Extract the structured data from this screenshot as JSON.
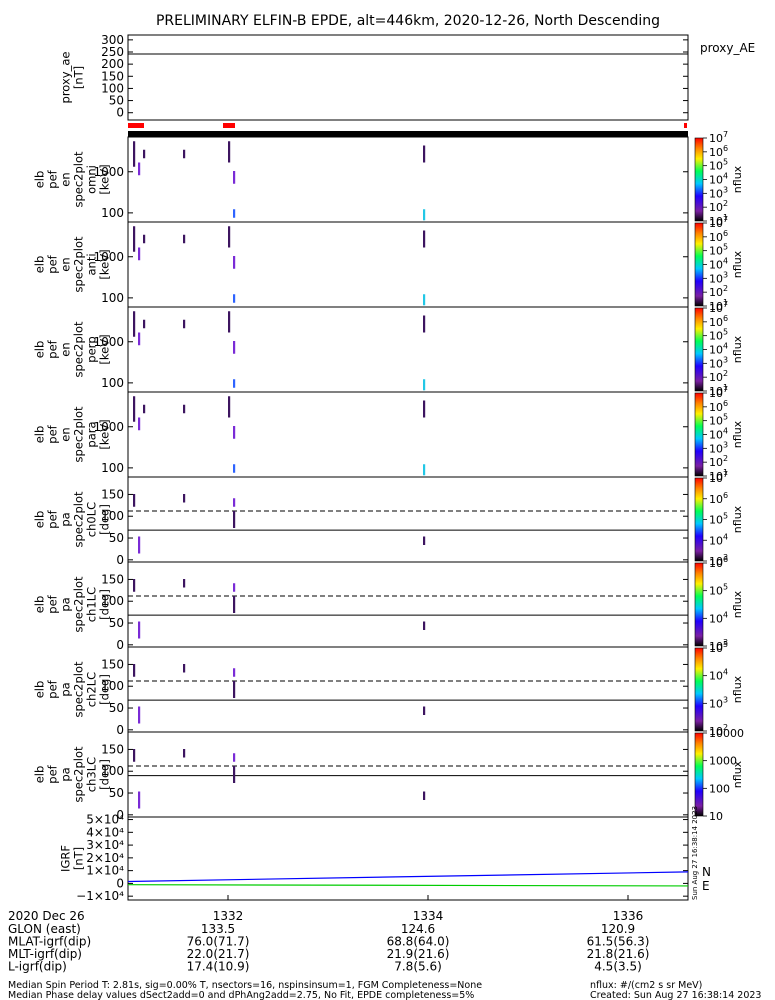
{
  "title": "PRELIMINARY ELFIN-B EPDE, alt=446km, 2020-12-26, North Descending",
  "colors": {
    "axis": "#000000",
    "flag_red": "#ff0000",
    "igrf_n": "#0000ff",
    "igrf_e": "#00cc00",
    "pixel_purple": "#3d1560",
    "pixel_violet": "#7a2bd6",
    "pixel_blue": "#2e63ff",
    "pixel_cyan": "#22c7e6"
  },
  "chart_data": [
    {
      "type": "line",
      "id": "proxy_ae",
      "ylabel_lines": [
        "proxy_ae",
        "[nT]"
      ],
      "yticks": [
        "300",
        "250",
        "200",
        "150",
        "100",
        "50",
        "0"
      ],
      "ylim": [
        -30,
        320
      ],
      "legend": "proxy_AE",
      "series": [
        {
          "x": [
            1331.0,
            1336.6
          ],
          "y": [
            242,
            242
          ]
        }
      ]
    },
    {
      "type": "heatmap",
      "id": "spec_omni",
      "ylabel_lines": [
        "elb",
        "pef",
        "en",
        "spec2plot",
        "omni",
        "[keV]"
      ],
      "yscale": "log",
      "ylim": [
        60,
        7000
      ],
      "yticks": [
        "1000",
        "100"
      ],
      "colorbar": {
        "scale": "log",
        "range": [
          10,
          10000000
        ],
        "label": "nflux"
      }
    },
    {
      "type": "heatmap",
      "id": "spec_anti",
      "ylabel_lines": [
        "elb",
        "pef",
        "en",
        "spec2plot",
        "anti",
        "[keV]"
      ],
      "yscale": "log",
      "ylim": [
        60,
        7000
      ],
      "yticks": [
        "1000",
        "100"
      ],
      "colorbar": {
        "scale": "log",
        "range": [
          10,
          10000000
        ],
        "label": "nflux"
      }
    },
    {
      "type": "heatmap",
      "id": "spec_perp",
      "ylabel_lines": [
        "elb",
        "pef",
        "en",
        "spec2plot",
        "perp",
        "[keV]"
      ],
      "yscale": "log",
      "ylim": [
        60,
        7000
      ],
      "yticks": [
        "1000",
        "100"
      ],
      "colorbar": {
        "scale": "log",
        "range": [
          10,
          10000000
        ],
        "label": "nflux"
      }
    },
    {
      "type": "heatmap",
      "id": "spec_para",
      "ylabel_lines": [
        "elb",
        "pef",
        "en",
        "spec2plot",
        "para",
        "[keV]"
      ],
      "yscale": "log",
      "ylim": [
        60,
        7000
      ],
      "yticks": [
        "1000",
        "100"
      ],
      "colorbar": {
        "scale": "log",
        "range": [
          10,
          10000000
        ],
        "label": "nflux"
      }
    },
    {
      "type": "heatmap",
      "id": "pa_ch0",
      "ylabel_lines": [
        "elb",
        "pef",
        "pa",
        "spec2plot",
        "ch0LC",
        "[deg]"
      ],
      "ylim": [
        -5,
        190
      ],
      "yticks": [
        "150",
        "100",
        "50",
        "0"
      ],
      "colorbar": {
        "scale": "log",
        "range": [
          1000,
          10000000
        ],
        "label": "nflux"
      },
      "losscone_dashed": 112,
      "losscone_solid": 68
    },
    {
      "type": "heatmap",
      "id": "pa_ch1",
      "ylabel_lines": [
        "elb",
        "pef",
        "pa",
        "spec2plot",
        "ch1LC",
        "[deg]"
      ],
      "ylim": [
        -5,
        190
      ],
      "yticks": [
        "150",
        "100",
        "50",
        "0"
      ],
      "colorbar": {
        "scale": "log",
        "range": [
          1000,
          1000000
        ],
        "label": "nflux"
      },
      "losscone_dashed": 112,
      "losscone_solid": 68
    },
    {
      "type": "heatmap",
      "id": "pa_ch2",
      "ylabel_lines": [
        "elb",
        "pef",
        "pa",
        "spec2plot",
        "ch2LC",
        "[deg]"
      ],
      "ylim": [
        -5,
        190
      ],
      "yticks": [
        "150",
        "100",
        "50",
        "0"
      ],
      "colorbar": {
        "scale": "log",
        "range": [
          100,
          100000
        ],
        "label": "nflux"
      },
      "losscone_dashed": 112,
      "losscone_solid": 68
    },
    {
      "type": "heatmap",
      "id": "pa_ch3",
      "ylabel_lines": [
        "elb",
        "pef",
        "pa",
        "spec2plot",
        "ch3LC",
        "[deg]"
      ],
      "ylim": [
        -5,
        190
      ],
      "yticks": [
        "150",
        "100",
        "50",
        "0"
      ],
      "colorbar": {
        "scale": "log",
        "range": [
          10,
          10000
        ],
        "label": "nflux",
        "ticks": [
          "10000",
          "1000",
          "100",
          "10"
        ]
      },
      "losscone_dashed": 112,
      "losscone_solid": 90
    },
    {
      "type": "line",
      "id": "igrf",
      "ylabel_lines": [
        "IGRF",
        "[nT]"
      ],
      "yticks": [
        "5×10⁴",
        "4×10⁴",
        "3×10⁴",
        "2×10⁴",
        "1×10⁴",
        "0",
        "−1×10⁴"
      ],
      "ylim": [
        -13000,
        52000
      ],
      "series": [
        {
          "name": "N",
          "x": [
            1331.0,
            1336.6
          ],
          "y": [
            1500,
            9000
          ]
        },
        {
          "name": "E",
          "x": [
            1331.0,
            1336.6
          ],
          "y": [
            -1000,
            -2000
          ]
        }
      ]
    }
  ],
  "x_axis": {
    "date_label": "2020 Dec 26",
    "ticks": [
      "1332",
      "1334",
      "1336"
    ],
    "rows": [
      {
        "label": "GLON (east)",
        "values": [
          "133.5",
          "124.6",
          "120.9"
        ]
      },
      {
        "label": "MLAT-igrf(dip)",
        "values": [
          "76.0(71.7)",
          "68.8(64.0)",
          "61.5(56.3)"
        ]
      },
      {
        "label": "MLT-igrf(dip)",
        "values": [
          "22.0(21.7)",
          "21.9(21.6)",
          "21.8(21.6)"
        ]
      },
      {
        "label": "L-igrf(dip)",
        "values": [
          "17.4(10.9)",
          "7.8(5.6)",
          "4.5(3.5)"
        ]
      }
    ]
  },
  "footer": {
    "line1": "Median Spin Period T: 2.81s, sig=0.00% T, nsectors=16, nspinsinsum=1, FGM Completeness=None",
    "line2": "Median Phase delay values dSect2add=0 and dPhAng2add=2.75, No Fit, EPDE completeness=5%",
    "units": "nflux: #/(cm2 s sr MeV)",
    "created": "Created: Sun Aug 27 16:38:14 2023",
    "side_stamp": "Sun Aug 27 16:38:14 2023"
  }
}
